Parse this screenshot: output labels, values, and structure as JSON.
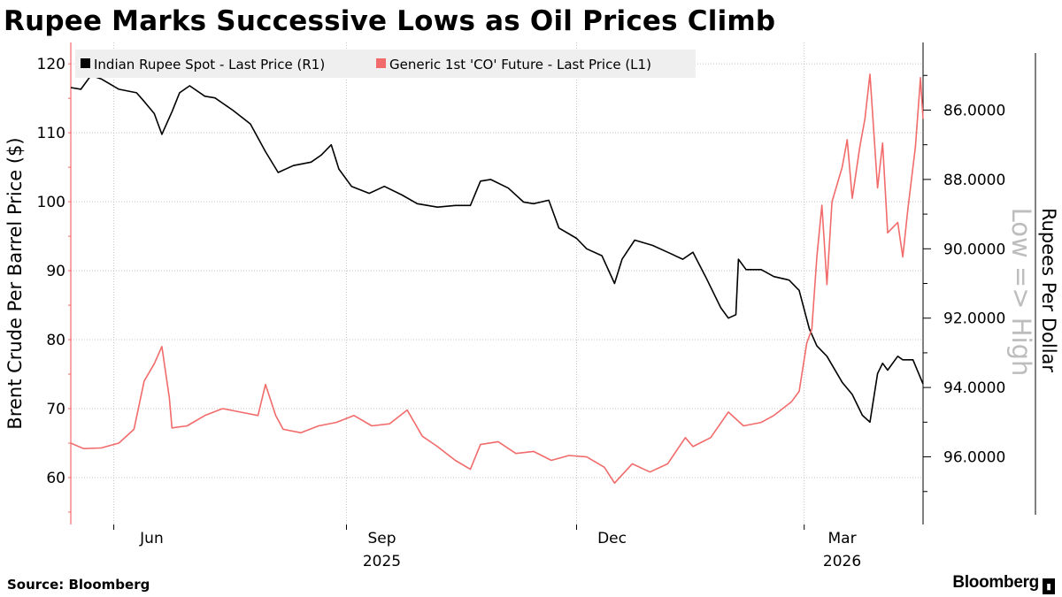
{
  "title": "Rupee Marks Successive Lows as Oil Prices Climb",
  "source": "Source: Bloomberg",
  "brand": "Bloomberg",
  "chart_data": {
    "type": "line",
    "legend_placement": "top-left",
    "grid": true,
    "x_axis": {
      "tick_labels": [
        "Jun",
        "Sep",
        "Dec",
        "Mar"
      ],
      "year_labels": [
        "2025",
        "2026"
      ],
      "range": [
        "2025-05-15",
        "2026-04-17"
      ]
    },
    "left_axis": {
      "label": "Brent Crude Per Barrel Price ($)",
      "ticks": [
        "60",
        "70",
        "80",
        "90",
        "100",
        "110",
        "120"
      ],
      "range": [
        53.2,
        123.1
      ]
    },
    "right_axis": {
      "label": "Rupees Per Dollar",
      "annotation": "Low => High",
      "inverted": true,
      "ticks": [
        "86.0000",
        "88.0000",
        "90.0000",
        "92.0000",
        "94.0000",
        "96.0000"
      ],
      "range": [
        84.05,
        97.95
      ]
    },
    "series": [
      {
        "name": "Indian Rupee Spot - Last Price (R1)",
        "axis": "right",
        "color": "#000000",
        "points": [
          [
            "2025-05-15",
            85.35
          ],
          [
            "2025-05-19",
            85.4
          ],
          [
            "2025-05-23",
            85.0
          ],
          [
            "2025-05-27",
            85.1
          ],
          [
            "2025-06-03",
            85.4
          ],
          [
            "2025-06-10",
            85.5
          ],
          [
            "2025-06-13",
            85.75
          ],
          [
            "2025-06-17",
            86.1
          ],
          [
            "2025-06-20",
            86.7
          ],
          [
            "2025-06-24",
            86.05
          ],
          [
            "2025-06-27",
            85.5
          ],
          [
            "2025-07-01",
            85.3
          ],
          [
            "2025-07-07",
            85.6
          ],
          [
            "2025-07-11",
            85.65
          ],
          [
            "2025-07-18",
            86.0
          ],
          [
            "2025-07-25",
            86.4
          ],
          [
            "2025-07-31",
            87.2
          ],
          [
            "2025-08-05",
            87.8
          ],
          [
            "2025-08-11",
            87.6
          ],
          [
            "2025-08-18",
            87.5
          ],
          [
            "2025-08-22",
            87.3
          ],
          [
            "2025-08-26",
            87.0
          ],
          [
            "2025-08-29",
            87.7
          ],
          [
            "2025-09-03",
            88.2
          ],
          [
            "2025-09-10",
            88.4
          ],
          [
            "2025-09-16",
            88.2
          ],
          [
            "2025-09-23",
            88.45
          ],
          [
            "2025-09-29",
            88.7
          ],
          [
            "2025-10-07",
            88.8
          ],
          [
            "2025-10-14",
            88.75
          ],
          [
            "2025-10-20",
            88.75
          ],
          [
            "2025-10-24",
            88.05
          ],
          [
            "2025-10-28",
            88.0
          ],
          [
            "2025-11-04",
            88.25
          ],
          [
            "2025-11-10",
            88.65
          ],
          [
            "2025-11-14",
            88.7
          ],
          [
            "2025-11-20",
            88.6
          ],
          [
            "2025-11-24",
            89.4
          ],
          [
            "2025-12-01",
            89.7
          ],
          [
            "2025-12-05",
            90.0
          ],
          [
            "2025-12-11",
            90.2
          ],
          [
            "2025-12-16",
            91.0
          ],
          [
            "2025-12-19",
            90.3
          ],
          [
            "2025-12-24",
            89.75
          ],
          [
            "2025-12-31",
            89.9
          ],
          [
            "2026-01-06",
            90.1
          ],
          [
            "2026-01-12",
            90.3
          ],
          [
            "2026-01-16",
            90.1
          ],
          [
            "2026-01-21",
            90.8
          ],
          [
            "2026-01-27",
            91.7
          ],
          [
            "2026-01-30",
            92.0
          ],
          [
            "2026-02-02",
            91.9
          ],
          [
            "2026-02-03",
            90.3
          ],
          [
            "2026-02-06",
            90.6
          ],
          [
            "2026-02-12",
            90.6
          ],
          [
            "2026-02-17",
            90.8
          ],
          [
            "2026-02-23",
            90.9
          ],
          [
            "2026-02-27",
            91.2
          ],
          [
            "2026-03-03",
            92.3
          ],
          [
            "2026-03-06",
            92.8
          ],
          [
            "2026-03-10",
            93.1
          ],
          [
            "2026-03-16",
            93.85
          ],
          [
            "2026-03-20",
            94.2
          ],
          [
            "2026-03-24",
            94.8
          ],
          [
            "2026-03-27",
            95.0
          ],
          [
            "2026-03-30",
            93.6
          ],
          [
            "2026-04-01",
            93.3
          ],
          [
            "2026-04-03",
            93.5
          ],
          [
            "2026-04-07",
            93.1
          ],
          [
            "2026-04-09",
            93.2
          ],
          [
            "2026-04-13",
            93.2
          ],
          [
            "2026-04-17",
            93.9
          ]
        ]
      },
      {
        "name": "Generic 1st 'CO' Future - Last Price (L1)",
        "axis": "left",
        "color": "#f26b6b",
        "points": [
          [
            "2025-05-15",
            65.0
          ],
          [
            "2025-05-20",
            64.2
          ],
          [
            "2025-05-27",
            64.3
          ],
          [
            "2025-06-03",
            65.0
          ],
          [
            "2025-06-09",
            67.0
          ],
          [
            "2025-06-13",
            74.0
          ],
          [
            "2025-06-17",
            76.5
          ],
          [
            "2025-06-20",
            79.0
          ],
          [
            "2025-06-23",
            71.5
          ],
          [
            "2025-06-24",
            67.2
          ],
          [
            "2025-06-30",
            67.5
          ],
          [
            "2025-07-07",
            69.0
          ],
          [
            "2025-07-14",
            70.0
          ],
          [
            "2025-07-21",
            69.5
          ],
          [
            "2025-07-28",
            69.0
          ],
          [
            "2025-07-31",
            73.5
          ],
          [
            "2025-08-04",
            69.0
          ],
          [
            "2025-08-07",
            67.0
          ],
          [
            "2025-08-14",
            66.5
          ],
          [
            "2025-08-21",
            67.5
          ],
          [
            "2025-08-28",
            68.0
          ],
          [
            "2025-09-04",
            69.0
          ],
          [
            "2025-09-11",
            67.5
          ],
          [
            "2025-09-18",
            67.8
          ],
          [
            "2025-09-25",
            69.8
          ],
          [
            "2025-10-01",
            66.0
          ],
          [
            "2025-10-07",
            64.5
          ],
          [
            "2025-10-14",
            62.5
          ],
          [
            "2025-10-20",
            61.2
          ],
          [
            "2025-10-24",
            64.8
          ],
          [
            "2025-10-31",
            65.2
          ],
          [
            "2025-11-07",
            63.5
          ],
          [
            "2025-11-14",
            63.8
          ],
          [
            "2025-11-21",
            62.5
          ],
          [
            "2025-11-28",
            63.2
          ],
          [
            "2025-12-05",
            63.0
          ],
          [
            "2025-12-12",
            61.5
          ],
          [
            "2025-12-16",
            59.2
          ],
          [
            "2025-12-23",
            62.0
          ],
          [
            "2025-12-30",
            60.8
          ],
          [
            "2026-01-06",
            62.0
          ],
          [
            "2026-01-13",
            65.8
          ],
          [
            "2026-01-16",
            64.5
          ],
          [
            "2026-01-23",
            65.8
          ],
          [
            "2026-01-30",
            69.5
          ],
          [
            "2026-02-05",
            67.5
          ],
          [
            "2026-02-12",
            68.0
          ],
          [
            "2026-02-17",
            69.0
          ],
          [
            "2026-02-24",
            71.0
          ],
          [
            "2026-02-27",
            72.5
          ],
          [
            "2026-03-02",
            79.5
          ],
          [
            "2026-03-04",
            81.5
          ],
          [
            "2026-03-06",
            92.0
          ],
          [
            "2026-03-08",
            99.5
          ],
          [
            "2026-03-10",
            88.0
          ],
          [
            "2026-03-12",
            100.0
          ],
          [
            "2026-03-16",
            105.0
          ],
          [
            "2026-03-18",
            109.0
          ],
          [
            "2026-03-20",
            100.5
          ],
          [
            "2026-03-23",
            108.0
          ],
          [
            "2026-03-25",
            112.0
          ],
          [
            "2026-03-27",
            118.5
          ],
          [
            "2026-03-30",
            102.0
          ],
          [
            "2026-04-01",
            108.5
          ],
          [
            "2026-04-03",
            95.5
          ],
          [
            "2026-04-07",
            97.0
          ],
          [
            "2026-04-09",
            92.0
          ],
          [
            "2026-04-11",
            99.0
          ],
          [
            "2026-04-14",
            108.0
          ],
          [
            "2026-04-16",
            118.0
          ],
          [
            "2026-04-17",
            112.0
          ]
        ]
      }
    ]
  }
}
